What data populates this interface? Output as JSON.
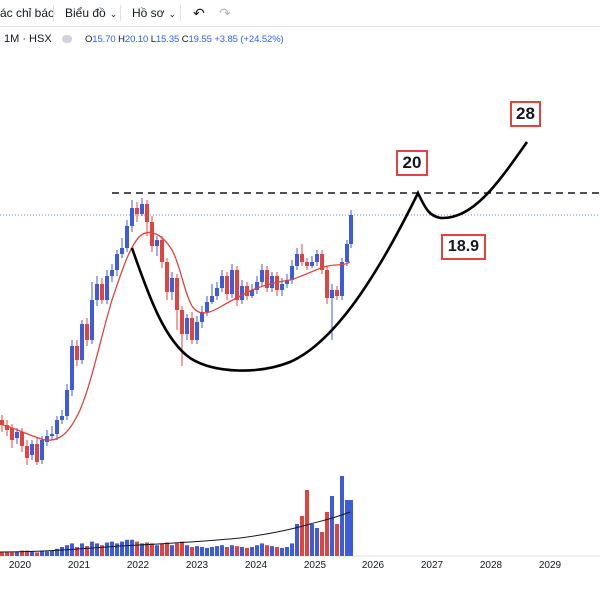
{
  "toolbar": {
    "indicators_label": "ác chỉ báo",
    "chart_type_label": "Biểu đồ",
    "profile_label": "Hồ sơ",
    "undo_icon": "undo-icon",
    "redo_icon": "redo-icon"
  },
  "legend": {
    "symbol": "1M · HSX",
    "open_key": "O",
    "open": "15.70",
    "high_key": "H",
    "high": "20.10",
    "low_key": "L",
    "low": "15.35",
    "close_key": "C",
    "close": "19.55",
    "change": "+3.85 (+24.52%)"
  },
  "annotations": {
    "target_high": "28",
    "target_mid": "20",
    "support": "18.9"
  },
  "colors": {
    "up": "#3d5bdb",
    "down": "#e0443e",
    "ma_line": "#e0443e",
    "volume_ma": "#131722",
    "annotation_border": "#e0443e"
  },
  "chart_data": {
    "type": "candlestick",
    "timeframe": "1M",
    "exchange": "HSX",
    "x_axis_labels": [
      "2020",
      "2021",
      "2022",
      "2023",
      "2024",
      "2025",
      "2026",
      "2027",
      "2028",
      "2029"
    ],
    "last_bar": {
      "open": 15.7,
      "high": 20.1,
      "low": 15.35,
      "close": 19.55,
      "change": 3.85,
      "change_pct": 24.52
    },
    "annotations": [
      {
        "label": "20",
        "type": "resistance"
      },
      {
        "label": "18.9",
        "type": "support"
      },
      {
        "label": "28",
        "type": "target"
      }
    ],
    "pattern": "cup-and-handle",
    "grid": false,
    "legend_position": "top-left"
  }
}
